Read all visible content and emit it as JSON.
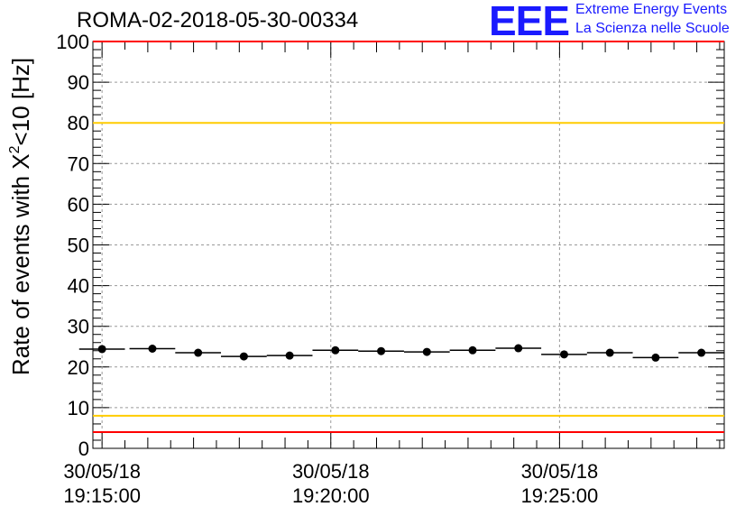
{
  "logo": {
    "mark": "EEE",
    "line1": "Extreme Energy Events",
    "line2": "La Scienza nelle Scuole",
    "color": "#1a1aff"
  },
  "chart_data": {
    "type": "scatter",
    "title": "ROMA-02-2018-05-30-00334",
    "ylabel_main": "Rate of events with X",
    "ylabel_sup": "2",
    "ylabel_tail": "<10 [Hz]",
    "xlabel": "",
    "ylim": [
      0,
      100
    ],
    "y_ticks": [
      0,
      10,
      20,
      30,
      40,
      50,
      60,
      70,
      80,
      90,
      100
    ],
    "x_unit": "minutes after 30/05/18 19:15:00",
    "xlim": [
      -0.2,
      13.6
    ],
    "x_ticks": [
      {
        "x": 0,
        "date": "30/05/18",
        "time": "19:15:00"
      },
      {
        "x": 5,
        "date": "30/05/18",
        "time": "19:20:00"
      },
      {
        "x": 10,
        "date": "30/05/18",
        "time": "19:25:00"
      }
    ],
    "grid": true,
    "series": [
      {
        "x": [
          0,
          1.1,
          2.1,
          3.1,
          4.1,
          5.1,
          6.1,
          7.1,
          8.1,
          9.1,
          10.1,
          11.1,
          12.1,
          13.1
        ],
        "y": [
          24.4,
          24.5,
          23.5,
          22.6,
          22.8,
          24.1,
          23.9,
          23.7,
          24.1,
          24.6,
          23.1,
          23.5,
          22.3,
          23.5
        ],
        "xerr": 0.5
      }
    ],
    "reference_lines": [
      {
        "y": 100,
        "color": "#ff0000"
      },
      {
        "y": 80,
        "color": "#ffcc00"
      },
      {
        "y": 8,
        "color": "#ffcc00"
      },
      {
        "y": 4,
        "color": "#ff0000"
      }
    ]
  }
}
